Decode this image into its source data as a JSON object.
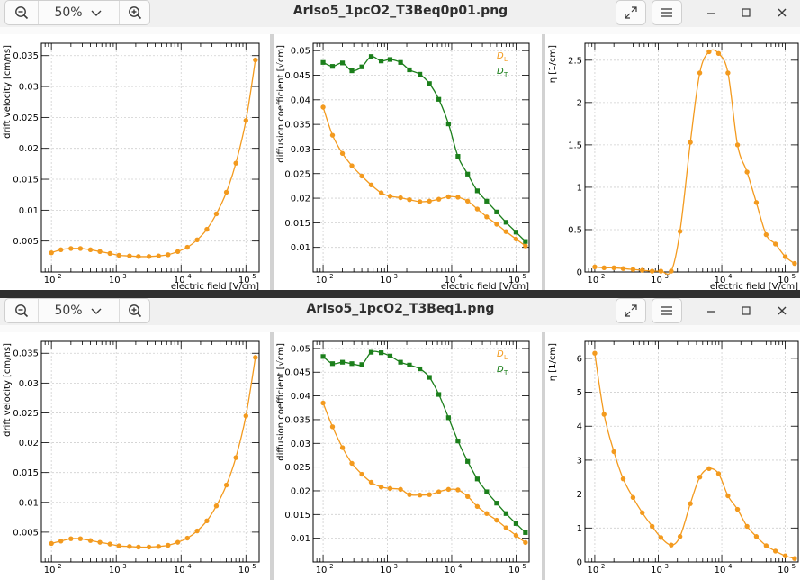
{
  "windows": [
    {
      "title": "ArIso5_1pcO2_T3Beq0p01.png",
      "zoom": "50%",
      "charts": [
        {
          "type": "line",
          "ylabel": "drift velocity [cm/ns]",
          "xlabel": "",
          "xlog": true,
          "xlim": [
            70,
            160000
          ],
          "ylim": [
            0,
            0.037
          ],
          "yticks": [
            0.005,
            0.01,
            0.015,
            0.02,
            0.025,
            0.03,
            0.035
          ],
          "ytick_labels": [
            "0.005",
            "0.01",
            "0.015",
            "0.02",
            "0.025",
            "0.03",
            "0.035"
          ],
          "series": [
            {
              "color": "#f39a1e",
              "marker": "circle",
              "x": [
                100,
                140,
                200,
                280,
                400,
                560,
                800,
                1100,
                1600,
                2200,
                3200,
                4500,
                6300,
                8900,
                12500,
                17700,
                25000,
                35000,
                50000,
                70000,
                100000,
                140000
              ],
              "y": [
                0.0031,
                0.0036,
                0.0038,
                0.0038,
                0.0036,
                0.0033,
                0.003,
                0.0027,
                0.0026,
                0.0025,
                0.0025,
                0.0026,
                0.0028,
                0.0033,
                0.004,
                0.0052,
                0.0069,
                0.0094,
                0.0129,
                0.0176,
                0.0245,
                0.0343
              ]
            }
          ]
        },
        {
          "type": "line",
          "ylabel": "diffusion coefficient [√cm]",
          "xlabel": "electric field [V/cm]",
          "xlog": true,
          "xlim": [
            70,
            160000
          ],
          "ylim": [
            0.005,
            0.0515
          ],
          "yticks": [
            0.01,
            0.015,
            0.02,
            0.025,
            0.03,
            0.035,
            0.04,
            0.045,
            0.05
          ],
          "ytick_labels": [
            "0.01",
            "0.015",
            "0.02",
            "0.025",
            "0.03",
            "0.035",
            "0.04",
            "0.045",
            "0.05"
          ],
          "legend": [
            {
              "label": "D",
              "sub": "L",
              "color": "#f39a1e"
            },
            {
              "label": "D",
              "sub": "T",
              "color": "#1b7f1b"
            }
          ],
          "series": [
            {
              "name": "DL",
              "color": "#f39a1e",
              "marker": "circle",
              "x": [
                100,
                140,
                200,
                280,
                400,
                560,
                800,
                1100,
                1600,
                2200,
                3200,
                4500,
                6300,
                8900,
                12500,
                17700,
                25000,
                35000,
                50000,
                70000,
                100000,
                140000
              ],
              "y": [
                0.0385,
                0.0328,
                0.0291,
                0.0266,
                0.0245,
                0.0227,
                0.0211,
                0.0204,
                0.0201,
                0.0197,
                0.0193,
                0.0194,
                0.0198,
                0.0203,
                0.0202,
                0.0194,
                0.0178,
                0.0162,
                0.0147,
                0.0132,
                0.0117,
                0.0103
              ]
            },
            {
              "name": "DT",
              "color": "#1b7f1b",
              "marker": "square",
              "x": [
                100,
                140,
                200,
                280,
                400,
                560,
                800,
                1100,
                1600,
                2200,
                3200,
                4500,
                6300,
                8900,
                12500,
                17700,
                25000,
                35000,
                50000,
                70000,
                100000,
                140000
              ],
              "y": [
                0.0476,
                0.0468,
                0.0475,
                0.0459,
                0.0467,
                0.0488,
                0.0479,
                0.0482,
                0.0476,
                0.0461,
                0.0452,
                0.0433,
                0.0401,
                0.0351,
                0.0285,
                0.0249,
                0.0215,
                0.0194,
                0.0172,
                0.0151,
                0.0131,
                0.0112
              ]
            }
          ]
        },
        {
          "type": "line",
          "ylabel": "η [1/cm]",
          "xlabel": "",
          "xlog": true,
          "xlim": [
            70,
            160000
          ],
          "ylim": [
            0,
            2.7
          ],
          "yticks": [
            0,
            0.5,
            1,
            1.5,
            2,
            2.5
          ],
          "ytick_labels": [
            "0",
            "0.5",
            "1",
            "1.5",
            "2",
            "2.5"
          ],
          "series": [
            {
              "color": "#f39a1e",
              "marker": "circle",
              "x": [
                100,
                140,
                200,
                280,
                400,
                560,
                800,
                1100,
                1600,
                2200,
                3200,
                4500,
                6300,
                8900,
                12500,
                17700,
                25000,
                35000,
                50000,
                70000,
                100000,
                140000
              ],
              "y": [
                0.06,
                0.05,
                0.05,
                0.04,
                0.03,
                0.02,
                0.01,
                0.01,
                0.01,
                0.48,
                1.53,
                2.35,
                2.6,
                2.58,
                2.35,
                1.5,
                1.18,
                0.82,
                0.44,
                0.33,
                0.18,
                0.1
              ]
            }
          ]
        }
      ],
      "shared_xlabel": "electric field [V/cm]",
      "xtick_labels": [
        "10",
        "10",
        "10",
        "10"
      ],
      "xtick_exps": [
        "2",
        "3",
        "4",
        "5"
      ]
    },
    {
      "title": "ArIso5_1pcO2_T3Beq1.png",
      "zoom": "50%",
      "charts": [
        {
          "type": "line",
          "ylabel": "drift velocity [cm/ns]",
          "xlabel": "",
          "xlog": true,
          "xlim": [
            70,
            160000
          ],
          "ylim": [
            0,
            0.037
          ],
          "yticks": [
            0.005,
            0.01,
            0.015,
            0.02,
            0.025,
            0.03,
            0.035
          ],
          "ytick_labels": [
            "0.005",
            "0.01",
            "0.015",
            "0.02",
            "0.025",
            "0.03",
            "0.035"
          ],
          "series": [
            {
              "color": "#f39a1e",
              "marker": "circle",
              "x": [
                100,
                140,
                200,
                280,
                400,
                560,
                800,
                1100,
                1600,
                2200,
                3200,
                4500,
                6300,
                8900,
                12500,
                17700,
                25000,
                35000,
                50000,
                70000,
                100000,
                140000
              ],
              "y": [
                0.0031,
                0.0035,
                0.0039,
                0.0039,
                0.0036,
                0.0033,
                0.003,
                0.0027,
                0.0026,
                0.0025,
                0.0025,
                0.0026,
                0.0028,
                0.0033,
                0.004,
                0.0052,
                0.0069,
                0.0094,
                0.0129,
                0.0175,
                0.0245,
                0.0343
              ]
            }
          ]
        },
        {
          "type": "line",
          "ylabel": "diffusion coefficient [√cm]",
          "xlabel": "",
          "xlog": true,
          "xlim": [
            70,
            160000
          ],
          "ylim": [
            0.005,
            0.0515
          ],
          "yticks": [
            0.01,
            0.015,
            0.02,
            0.025,
            0.03,
            0.035,
            0.04,
            0.045,
            0.05
          ],
          "ytick_labels": [
            "0.01",
            "0.015",
            "0.02",
            "0.025",
            "0.03",
            "0.035",
            "0.04",
            "0.045",
            "0.05"
          ],
          "legend": [
            {
              "label": "D",
              "sub": "L",
              "color": "#f39a1e"
            },
            {
              "label": "D",
              "sub": "T",
              "color": "#1b7f1b"
            }
          ],
          "series": [
            {
              "name": "DL",
              "color": "#f39a1e",
              "marker": "circle",
              "x": [
                100,
                140,
                200,
                280,
                400,
                560,
                800,
                1100,
                1600,
                2200,
                3200,
                4500,
                6300,
                8900,
                12500,
                17700,
                25000,
                35000,
                50000,
                70000,
                100000,
                140000
              ],
              "y": [
                0.0385,
                0.0335,
                0.0291,
                0.0258,
                0.0235,
                0.0218,
                0.0208,
                0.0205,
                0.0203,
                0.0192,
                0.0191,
                0.0192,
                0.0198,
                0.0203,
                0.0202,
                0.0188,
                0.0167,
                0.0152,
                0.0138,
                0.0122,
                0.0106,
                0.0091
              ]
            },
            {
              "name": "DT",
              "color": "#1b7f1b",
              "marker": "square",
              "x": [
                100,
                140,
                200,
                280,
                400,
                560,
                800,
                1100,
                1600,
                2200,
                3200,
                4500,
                6300,
                8900,
                12500,
                17700,
                25000,
                35000,
                50000,
                70000,
                100000,
                140000
              ],
              "y": [
                0.0483,
                0.0468,
                0.0471,
                0.0468,
                0.0466,
                0.0492,
                0.0491,
                0.0484,
                0.0471,
                0.0465,
                0.0457,
                0.0439,
                0.0403,
                0.0354,
                0.0305,
                0.0262,
                0.0225,
                0.0198,
                0.0174,
                0.0152,
                0.0131,
                0.0112
              ]
            }
          ]
        },
        {
          "type": "line",
          "ylabel": "η [1/cm]",
          "xlabel": "",
          "xlog": true,
          "xlim": [
            70,
            160000
          ],
          "ylim": [
            0,
            6.5
          ],
          "yticks": [
            0,
            1,
            2,
            3,
            4,
            5,
            6
          ],
          "ytick_labels": [
            "0",
            "1",
            "2",
            "3",
            "4",
            "5",
            "6"
          ],
          "series": [
            {
              "color": "#f39a1e",
              "marker": "circle",
              "x": [
                100,
                140,
                200,
                280,
                400,
                560,
                800,
                1100,
                1600,
                2200,
                3200,
                4500,
                6300,
                8900,
                12500,
                17700,
                25000,
                35000,
                50000,
                70000,
                100000,
                140000
              ],
              "y": [
                6.15,
                4.35,
                3.25,
                2.45,
                1.9,
                1.45,
                1.05,
                0.72,
                0.5,
                0.75,
                1.72,
                2.5,
                2.75,
                2.6,
                1.95,
                1.55,
                1.05,
                0.75,
                0.48,
                0.32,
                0.18,
                0.1
              ]
            }
          ]
        }
      ],
      "shared_xlabel": "",
      "xtick_labels": [
        "10",
        "10",
        "10",
        "10"
      ],
      "xtick_exps": [
        "2",
        "3",
        "4",
        "5"
      ]
    }
  ],
  "icons": {
    "zoom_out": "zoom-out-icon",
    "zoom_in": "zoom-in-icon",
    "chevron": "chevron-down-icon",
    "fullscreen": "fullscreen-icon",
    "menu": "menu-icon",
    "minimize": "minimize-icon",
    "maximize": "maximize-icon",
    "close": "close-icon"
  },
  "colors": {
    "dl": "#f39a1e",
    "dt": "#1b7f1b",
    "grid": "#c8c8c8"
  }
}
